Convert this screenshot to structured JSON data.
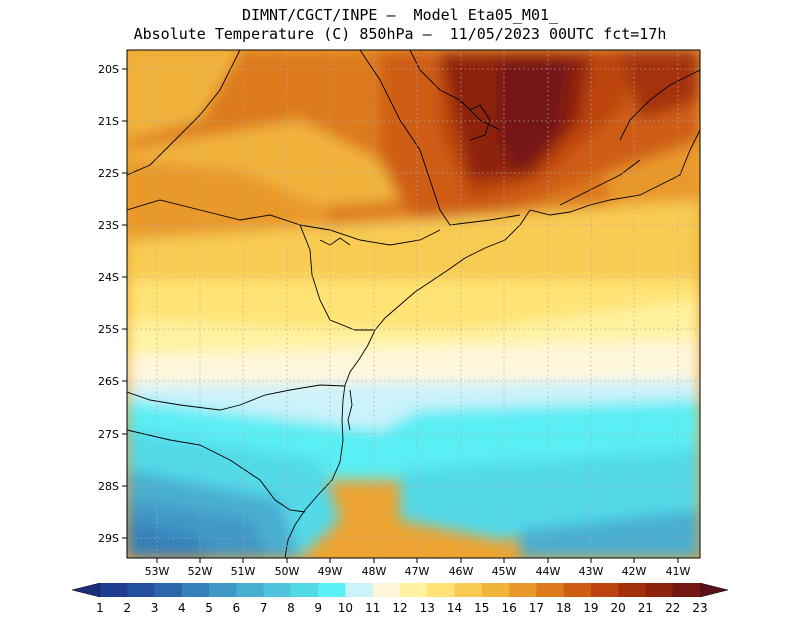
{
  "title": {
    "line1": "DIMNT/CGCT/INPE –  Model Eta05_M01_",
    "line2": "Absolute Temperature (C) 850hPa –  11/05/2023 00UTC fct=17h"
  },
  "axes": {
    "lat_labels": [
      "20S",
      "21S",
      "22S",
      "23S",
      "24S",
      "25S",
      "26S",
      "27S",
      "28S",
      "29S"
    ],
    "lon_labels": [
      "53W",
      "52W",
      "51W",
      "50W",
      "49W",
      "48W",
      "47W",
      "46W",
      "45W",
      "44W",
      "43W",
      "42W",
      "41W"
    ]
  },
  "colorbar": {
    "labels": [
      "1",
      "2",
      "3",
      "4",
      "5",
      "6",
      "7",
      "8",
      "9",
      "10",
      "11",
      "12",
      "13",
      "14",
      "15",
      "16",
      "17",
      "18",
      "19",
      "20",
      "21",
      "22",
      "23"
    ],
    "colors": [
      "#1f3d8f",
      "#244f9e",
      "#2b66ad",
      "#3580bb",
      "#3f97c6",
      "#48aed1",
      "#4fc4dc",
      "#52d9e8",
      "#5aeef5",
      "#ccf2fa",
      "#fff6dc",
      "#fff3a0",
      "#ffe375",
      "#f8cc52",
      "#f2b33c",
      "#e9982b",
      "#dd7a1b",
      "#cf5d12",
      "#bd440e",
      "#a5300c",
      "#8d220d",
      "#741712"
    ],
    "end_low": "#1a2e7a",
    "end_high": "#5a1018"
  }
}
